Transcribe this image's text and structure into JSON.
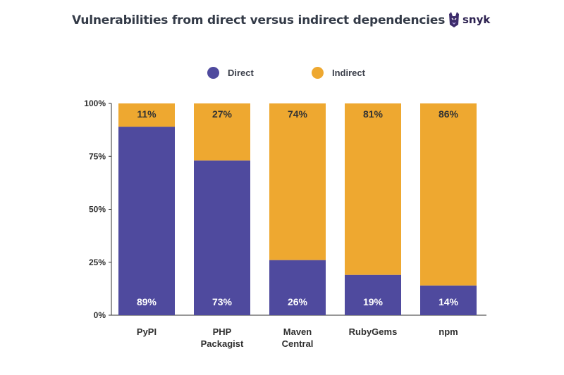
{
  "title": "Vulnerabilities from direct versus indirect dependencies",
  "brand": {
    "name": "snyk",
    "icon": "snyk-dog-icon"
  },
  "colors": {
    "direct": "#4f4a9e",
    "indirect": "#eea830",
    "text": "#333a47",
    "axis": "#2f2f2f"
  },
  "chart_data": {
    "type": "bar",
    "stacked": true,
    "title": "Vulnerabilities from direct versus indirect dependencies",
    "categories": [
      [
        "PyPI"
      ],
      [
        "PHP",
        "Packagist"
      ],
      [
        "Maven",
        "Central"
      ],
      [
        "RubyGems"
      ],
      [
        "npm"
      ]
    ],
    "series": [
      {
        "name": "Direct",
        "values": [
          89,
          73,
          26,
          19,
          14
        ],
        "labels": [
          "89%",
          "73%",
          "26%",
          "19%",
          "14%"
        ]
      },
      {
        "name": "Indirect",
        "values": [
          11,
          27,
          74,
          81,
          86
        ],
        "labels": [
          "11%",
          "27%",
          "74%",
          "81%",
          "86%"
        ]
      }
    ],
    "y_ticks": [
      "0%",
      "25%",
      "50%",
      "75%",
      "100%"
    ],
    "ylim": [
      0,
      100
    ],
    "legend": "top-center",
    "grid": false
  }
}
